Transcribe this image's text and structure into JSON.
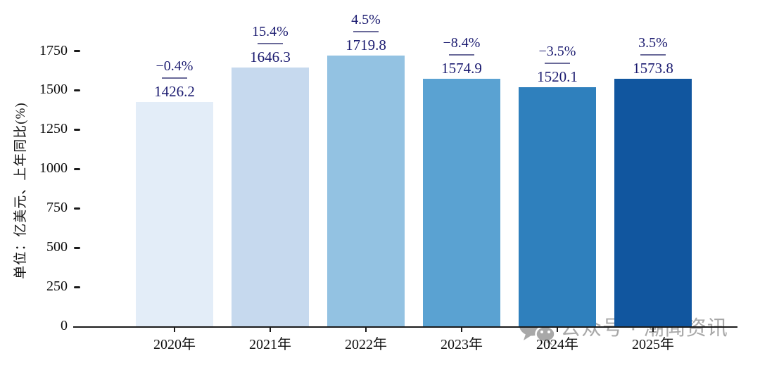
{
  "chart_data": {
    "type": "bar",
    "categories": [
      "2020年",
      "2021年",
      "2022年",
      "2023年",
      "2024年",
      "2025年"
    ],
    "values": [
      1426.2,
      1646.3,
      1719.8,
      1574.9,
      1520.1,
      1573.8
    ],
    "value_labels": [
      "1426.2",
      "1646.3",
      "1719.8",
      "1574.9",
      "1520.1",
      "1573.8"
    ],
    "growth_labels": [
      "−0.4%",
      "15.4%",
      "4.5%",
      "−8.4%",
      "−3.5%",
      "3.5%"
    ],
    "bar_colors": [
      "#e3edf8",
      "#c6d9ee",
      "#93c2e2",
      "#5aa2d2",
      "#2f80bd",
      "#11569f"
    ],
    "title": "",
    "xlabel": "",
    "ylabel": "单位：亿美元、上年同比(%)",
    "ylim": [
      0,
      2080
    ],
    "yticks": [
      0,
      250,
      500,
      750,
      1000,
      1250,
      1500,
      1750
    ],
    "grid": false,
    "legend": "none",
    "annotation_color": "#1b1b70",
    "annotation_rule_color": "#6a6a99",
    "axis_color": "#1a1a1a"
  },
  "watermark": {
    "text": "公众号 · 潮闻资讯",
    "icon": "wechat-icon",
    "color": "#a8a8a8"
  }
}
